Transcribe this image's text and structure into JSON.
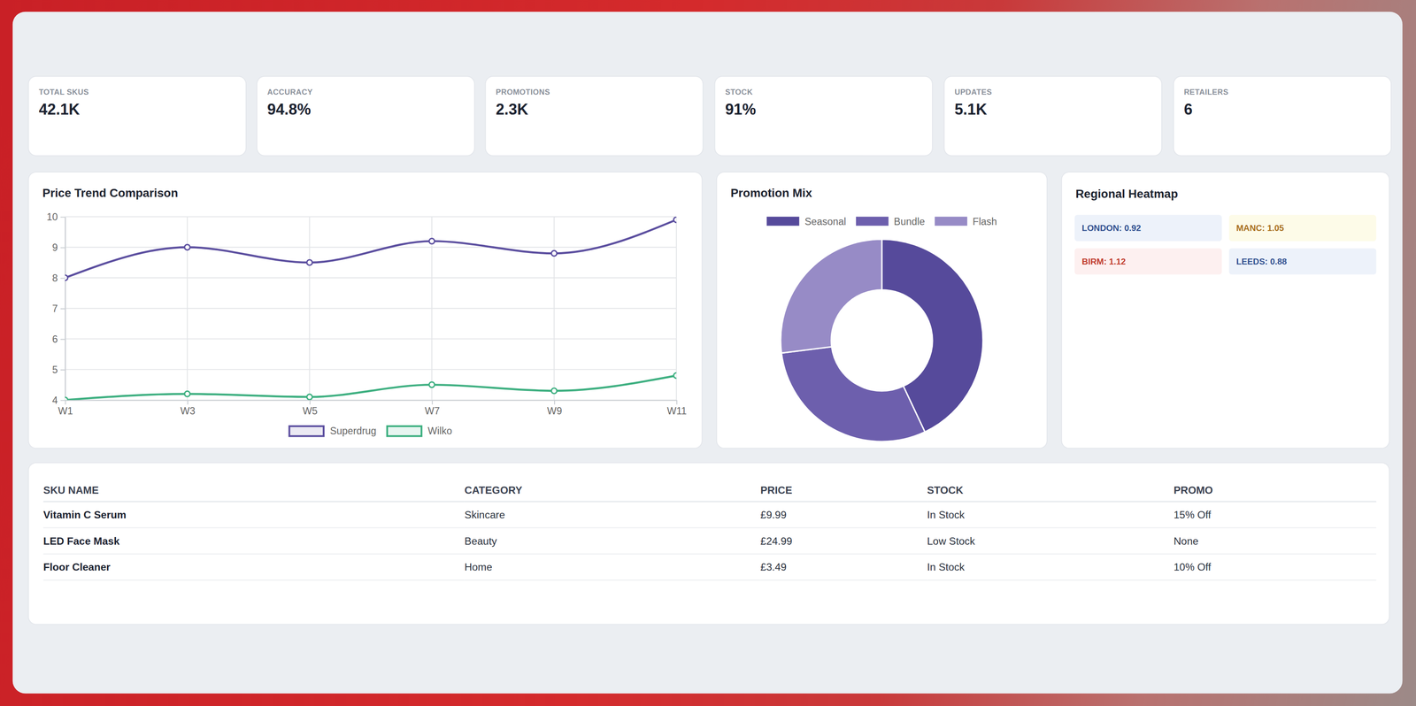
{
  "kpis": [
    {
      "label": "TOTAL SKUS",
      "value": "42.1K"
    },
    {
      "label": "ACCURACY",
      "value": "94.8%"
    },
    {
      "label": "PROMOTIONS",
      "value": "2.3K"
    },
    {
      "label": "STOCK",
      "value": "91%"
    },
    {
      "label": "UPDATES",
      "value": "5.1K"
    },
    {
      "label": "RETAILERS",
      "value": "6"
    }
  ],
  "chart_data": [
    {
      "type": "line",
      "title": "Price Trend Comparison",
      "categories": [
        "W1",
        "W3",
        "W5",
        "W7",
        "W9",
        "W11"
      ],
      "series": [
        {
          "name": "Superdrug",
          "color": "#5b4e9f",
          "values": [
            8,
            9,
            8.5,
            9.2,
            8.8,
            9.9
          ]
        },
        {
          "name": "Wilko",
          "color": "#3daf80",
          "values": [
            4,
            4.2,
            4.1,
            4.5,
            4.3,
            4.8
          ]
        }
      ],
      "ylim": [
        4,
        10
      ],
      "yticks": [
        4,
        5,
        6,
        7,
        8,
        9,
        10
      ],
      "grid": true,
      "legend": "bottom",
      "marker": "circle"
    },
    {
      "type": "donut",
      "title": "Promotion Mix",
      "categories": [
        "Seasonal",
        "Bundle",
        "Flash"
      ],
      "values": [
        43,
        30,
        27
      ],
      "colors": [
        "#564a9b",
        "#6d5fad",
        "#978bc6"
      ],
      "legend": "top"
    }
  ],
  "heatmap": {
    "title": "Regional Heatmap",
    "cells": [
      {
        "text": "LONDON: 0.92",
        "value": 0.92
      },
      {
        "text": "MANC: 1.05",
        "value": 1.05
      },
      {
        "text": "BIRM: 1.12",
        "value": 1.12
      },
      {
        "text": "LEEDS: 0.88",
        "value": 0.88
      }
    ]
  },
  "table": {
    "columns": [
      "SKU NAME",
      "CATEGORY",
      "PRICE",
      "STOCK",
      "PROMO"
    ],
    "rows": [
      [
        "Vitamin C Serum",
        "Skincare",
        "£9.99",
        "In Stock",
        "15% Off"
      ],
      [
        "LED Face Mask",
        "Beauty",
        "£24.99",
        "Low Stock",
        "None"
      ],
      [
        "Floor Cleaner",
        "Home",
        "£3.49",
        "In Stock",
        "10% Off"
      ]
    ]
  }
}
